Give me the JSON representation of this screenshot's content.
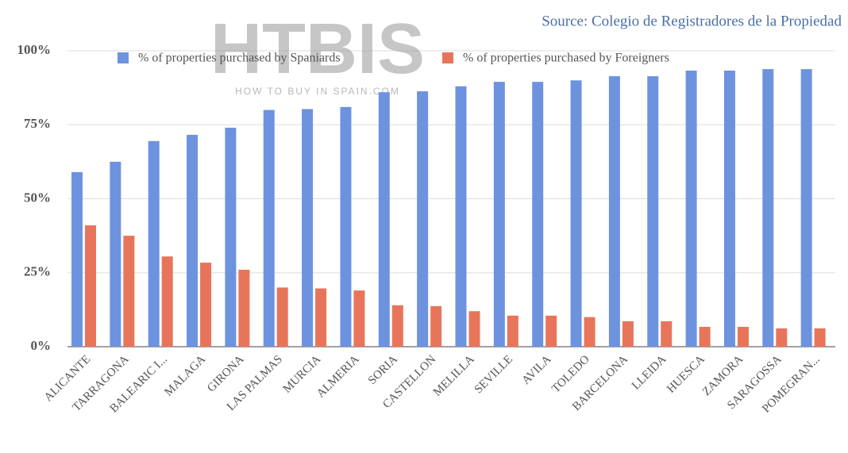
{
  "chart_data": {
    "type": "bar",
    "subtitle": "Source: Colegio de Registradores de la Propiedad",
    "watermark": {
      "brand": "HTBIS",
      "tagline": "HOW TO BUY IN SPAIN.COM"
    },
    "categories": [
      "ALICANTE",
      "TARRAGONA",
      "BALEARIC I...",
      "MALAGA",
      "GIRONA",
      "LAS PALMAS",
      "MURCIA",
      "ALMERIA",
      "SORIA",
      "CASTELLON",
      "MELILLA",
      "SEVILLE",
      "AVILA",
      "TOLEDO",
      "BARCELONA",
      "LLEIDA",
      "HUESCA",
      "ZAMORA",
      "SARAGOSSA",
      "POMEGRAN..."
    ],
    "series": [
      {
        "name": "% of properties purchased by Spaniards",
        "color": "#6d93df",
        "values": [
          59,
          62.5,
          69.5,
          71.6,
          74,
          80,
          80.3,
          81,
          86,
          86.3,
          88,
          89.5,
          89.5,
          90,
          91.4,
          91.4,
          93.3,
          93.3,
          93.8,
          93.8
        ]
      },
      {
        "name": "% of properties purchased by Foreigners",
        "color": "#e8755a",
        "values": [
          41,
          37.5,
          30.5,
          28.4,
          26,
          20,
          19.7,
          19,
          14,
          13.7,
          12,
          10.5,
          10.5,
          10,
          8.6,
          8.6,
          6.7,
          6.7,
          6.2,
          6.2
        ]
      }
    ],
    "ylim": [
      0,
      100
    ],
    "yticks": [
      {
        "value": 0,
        "label": "0%"
      },
      {
        "value": 25,
        "label": "25%"
      },
      {
        "value": 50,
        "label": "50%"
      },
      {
        "value": 75,
        "label": "75%"
      },
      {
        "value": 100,
        "label": "100%"
      }
    ],
    "grid": true
  }
}
